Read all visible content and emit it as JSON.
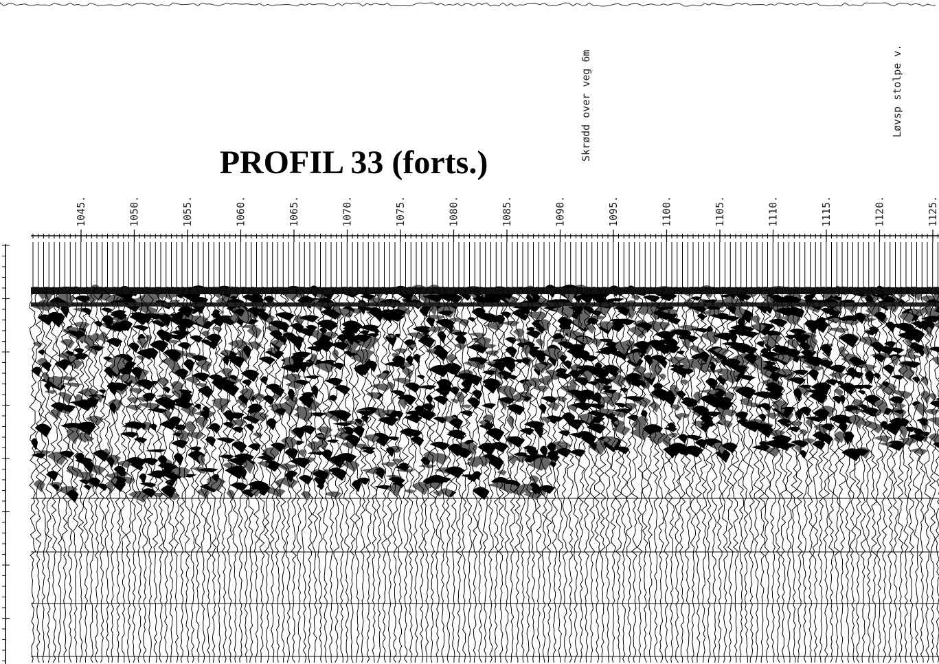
{
  "header": {
    "title": "PROFIL  33 (forts.)"
  },
  "annotations": [
    "Skrødd over veg 6m",
    "Løvsp stolpe v."
  ],
  "stations": [
    "1045.",
    "1050.",
    "1055.",
    "1060.",
    "1065.",
    "1070.",
    "1075.",
    "1080.",
    "1085.",
    "1090.",
    "1095.",
    "1100.",
    "1105.",
    "1110.",
    "1115.",
    "1120.",
    "1125."
  ]
}
